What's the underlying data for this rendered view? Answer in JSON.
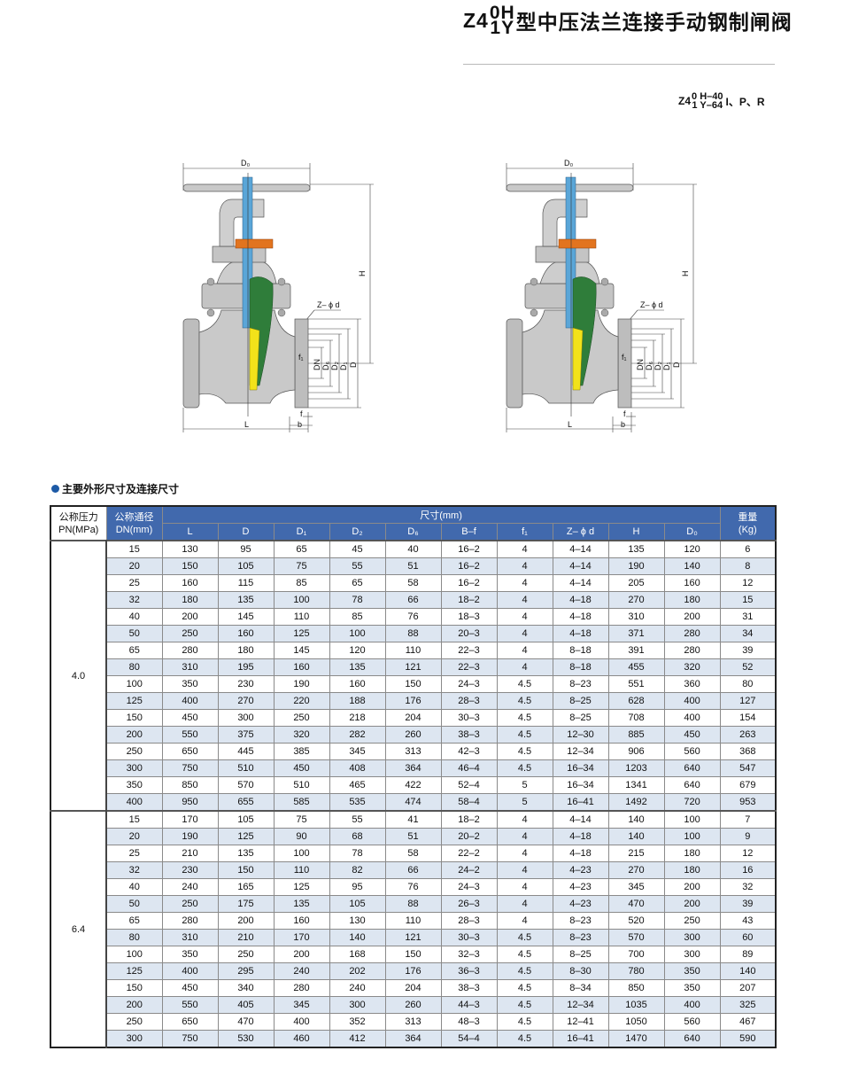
{
  "header": {
    "title_prefix": "Z4",
    "title_sup": "0H",
    "title_sub": "1Y",
    "title_text": "型中压法兰连接手动钢制闸阀",
    "model_prefix": "Z4",
    "model_top": "0 H–40",
    "model_bottom": "1 Y–64",
    "model_suffix": "I、P、R"
  },
  "drawing": {
    "labels": {
      "Do": "D₀",
      "H": "H",
      "Zd": "Z– ϕ d",
      "f1": "f₁",
      "DN": "DN",
      "D6": "D₆",
      "D2": "D₂",
      "D1": "D₁",
      "D": "D",
      "f": "f",
      "b": "b",
      "L": "L"
    },
    "colors": {
      "body": "#c9c9c9",
      "stem": "#5aa6d8",
      "disc": "#2f7d3a",
      "seat": "#f2e21a",
      "packing": "#e2741f"
    }
  },
  "section": {
    "heading": "主要外形尺寸及连接尺寸"
  },
  "table": {
    "header": {
      "pn": "公称压力",
      "pn_unit": "PN(MPa)",
      "dn": "公称通径",
      "dn_unit": "DN(mm)",
      "dims": "尺寸(mm)",
      "weight": "重量",
      "weight_unit": "(Kg)",
      "columns": [
        "L",
        "D",
        "D₁",
        "D₂",
        "D₆",
        "B–f",
        "f₁",
        "Z– ϕ d",
        "H",
        "D₀"
      ]
    },
    "groups": [
      {
        "pn": "4.0",
        "rows": [
          [
            "15",
            "130",
            "95",
            "65",
            "45",
            "40",
            "16–2",
            "4",
            "4–14",
            "135",
            "120",
            "6"
          ],
          [
            "20",
            "150",
            "105",
            "75",
            "55",
            "51",
            "16–2",
            "4",
            "4–14",
            "190",
            "140",
            "8"
          ],
          [
            "25",
            "160",
            "115",
            "85",
            "65",
            "58",
            "16–2",
            "4",
            "4–14",
            "205",
            "160",
            "12"
          ],
          [
            "32",
            "180",
            "135",
            "100",
            "78",
            "66",
            "18–2",
            "4",
            "4–18",
            "270",
            "180",
            "15"
          ],
          [
            "40",
            "200",
            "145",
            "110",
            "85",
            "76",
            "18–3",
            "4",
            "4–18",
            "310",
            "200",
            "31"
          ],
          [
            "50",
            "250",
            "160",
            "125",
            "100",
            "88",
            "20–3",
            "4",
            "4–18",
            "371",
            "280",
            "34"
          ],
          [
            "65",
            "280",
            "180",
            "145",
            "120",
            "110",
            "22–3",
            "4",
            "8–18",
            "391",
            "280",
            "39"
          ],
          [
            "80",
            "310",
            "195",
            "160",
            "135",
            "121",
            "22–3",
            "4",
            "8–18",
            "455",
            "320",
            "52"
          ],
          [
            "100",
            "350",
            "230",
            "190",
            "160",
            "150",
            "24–3",
            "4.5",
            "8–23",
            "551",
            "360",
            "80"
          ],
          [
            "125",
            "400",
            "270",
            "220",
            "188",
            "176",
            "28–3",
            "4.5",
            "8–25",
            "628",
            "400",
            "127"
          ],
          [
            "150",
            "450",
            "300",
            "250",
            "218",
            "204",
            "30–3",
            "4.5",
            "8–25",
            "708",
            "400",
            "154"
          ],
          [
            "200",
            "550",
            "375",
            "320",
            "282",
            "260",
            "38–3",
            "4.5",
            "12–30",
            "885",
            "450",
            "263"
          ],
          [
            "250",
            "650",
            "445",
            "385",
            "345",
            "313",
            "42–3",
            "4.5",
            "12–34",
            "906",
            "560",
            "368"
          ],
          [
            "300",
            "750",
            "510",
            "450",
            "408",
            "364",
            "46–4",
            "4.5",
            "16–34",
            "1203",
            "640",
            "547"
          ],
          [
            "350",
            "850",
            "570",
            "510",
            "465",
            "422",
            "52–4",
            "5",
            "16–34",
            "1341",
            "640",
            "679"
          ],
          [
            "400",
            "950",
            "655",
            "585",
            "535",
            "474",
            "58–4",
            "5",
            "16–41",
            "1492",
            "720",
            "953"
          ]
        ]
      },
      {
        "pn": "6.4",
        "rows": [
          [
            "15",
            "170",
            "105",
            "75",
            "55",
            "41",
            "18–2",
            "4",
            "4–14",
            "140",
            "100",
            "7"
          ],
          [
            "20",
            "190",
            "125",
            "90",
            "68",
            "51",
            "20–2",
            "4",
            "4–18",
            "140",
            "100",
            "9"
          ],
          [
            "25",
            "210",
            "135",
            "100",
            "78",
            "58",
            "22–2",
            "4",
            "4–18",
            "215",
            "180",
            "12"
          ],
          [
            "32",
            "230",
            "150",
            "110",
            "82",
            "66",
            "24–2",
            "4",
            "4–23",
            "270",
            "180",
            "16"
          ],
          [
            "40",
            "240",
            "165",
            "125",
            "95",
            "76",
            "24–3",
            "4",
            "4–23",
            "345",
            "200",
            "32"
          ],
          [
            "50",
            "250",
            "175",
            "135",
            "105",
            "88",
            "26–3",
            "4",
            "4–23",
            "470",
            "200",
            "39"
          ],
          [
            "65",
            "280",
            "200",
            "160",
            "130",
            "110",
            "28–3",
            "4",
            "8–23",
            "520",
            "250",
            "43"
          ],
          [
            "80",
            "310",
            "210",
            "170",
            "140",
            "121",
            "30–3",
            "4.5",
            "8–23",
            "570",
            "300",
            "60"
          ],
          [
            "100",
            "350",
            "250",
            "200",
            "168",
            "150",
            "32–3",
            "4.5",
            "8–25",
            "700",
            "300",
            "89"
          ],
          [
            "125",
            "400",
            "295",
            "240",
            "202",
            "176",
            "36–3",
            "4.5",
            "8–30",
            "780",
            "350",
            "140"
          ],
          [
            "150",
            "450",
            "340",
            "280",
            "240",
            "204",
            "38–3",
            "4.5",
            "8–34",
            "850",
            "350",
            "207"
          ],
          [
            "200",
            "550",
            "405",
            "345",
            "300",
            "260",
            "44–3",
            "4.5",
            "12–34",
            "1035",
            "400",
            "325"
          ],
          [
            "250",
            "650",
            "470",
            "400",
            "352",
            "313",
            "48–3",
            "4.5",
            "12–41",
            "1050",
            "560",
            "467"
          ],
          [
            "300",
            "750",
            "530",
            "460",
            "412",
            "364",
            "54–4",
            "4.5",
            "16–41",
            "1470",
            "640",
            "590"
          ]
        ]
      }
    ]
  }
}
